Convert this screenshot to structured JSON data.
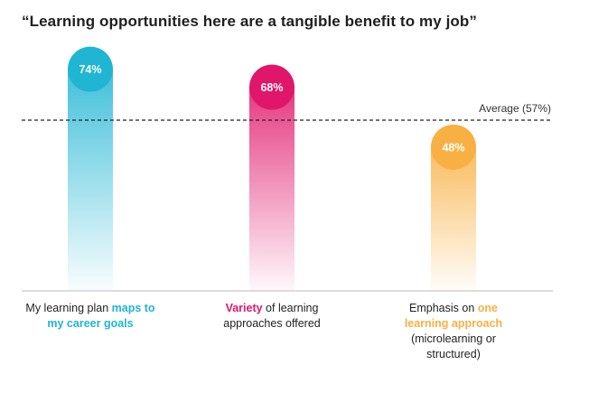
{
  "title": "“Learning opportunities here are a tangible benefit to my job”",
  "average_label": "Average (57%)",
  "chart_data": {
    "type": "bar",
    "title": "“Learning opportunities here are a tangible benefit to my job”",
    "ylim": [
      0,
      100
    ],
    "average": 57,
    "categories": [
      "My learning plan maps to my career goals",
      "Variety of learning approaches offered",
      "Emphasis on one learning approach (microlearning or structured)"
    ],
    "values": [
      74,
      68,
      48
    ],
    "value_labels": [
      "74%",
      "68%",
      "48%"
    ],
    "colors": [
      "#1fb5d3",
      "#e0166a",
      "#f8b042"
    ],
    "grid": false,
    "legend": "none"
  },
  "category_labels": [
    {
      "lines": [
        [
          {
            "text": "My learning plan ",
            "hl": false
          },
          {
            "text": "maps to",
            "hl": true
          }
        ],
        [
          {
            "text": "my career goals",
            "hl": true
          }
        ]
      ]
    },
    {
      "lines": [
        [
          {
            "text": "Variety",
            "hl": true
          },
          {
            "text": " of learning",
            "hl": false
          }
        ],
        [
          {
            "text": "approaches offered",
            "hl": false
          }
        ]
      ]
    },
    {
      "lines": [
        [
          {
            "text": "Emphasis on ",
            "hl": false
          },
          {
            "text": "one",
            "hl": true
          }
        ],
        [
          {
            "text": "learning approach",
            "hl": true
          }
        ],
        [
          {
            "text": "(microlearning or",
            "hl": false
          }
        ],
        [
          {
            "text": "structured)",
            "hl": false
          }
        ]
      ]
    }
  ]
}
